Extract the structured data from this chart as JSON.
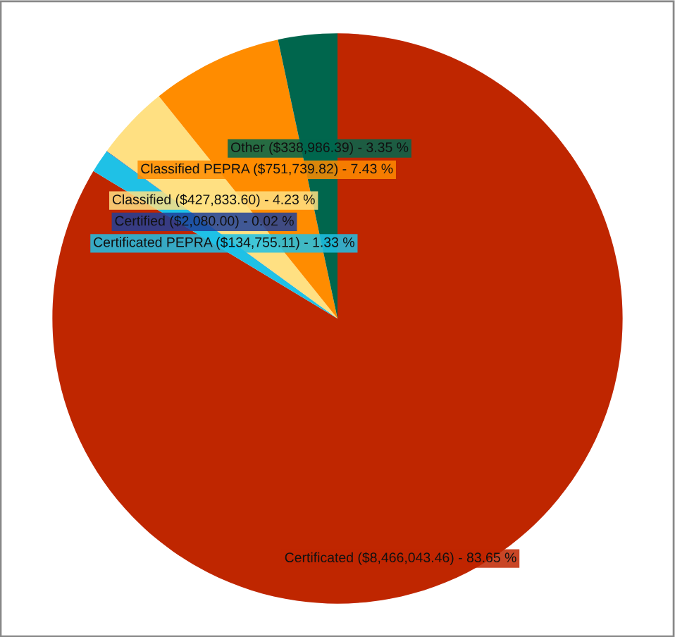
{
  "chart_data": {
    "type": "pie",
    "categories": [
      "Certificated",
      "Certificated PEPRA",
      "Certified",
      "Classified",
      "Classified PEPRA",
      "Other"
    ],
    "values": [
      8466043.46,
      134755.11,
      2080.0,
      427833.6,
      751739.82,
      338986.39
    ],
    "colors": [
      "#bf2600",
      "#1fc1e6",
      "#1f3f99",
      "#ffe082",
      "#ff8c00",
      "#00664d"
    ],
    "value_labels": [
      "($8,466,043.46) - 83.65 %",
      "($134,755.11) - 1.33 %",
      "($2,080.00) - 0.02 %",
      "($427,833.60) - 4.23 %",
      "($751,739.82) - 7.43 %",
      "($338,986.39) - 3.35 %"
    ]
  }
}
